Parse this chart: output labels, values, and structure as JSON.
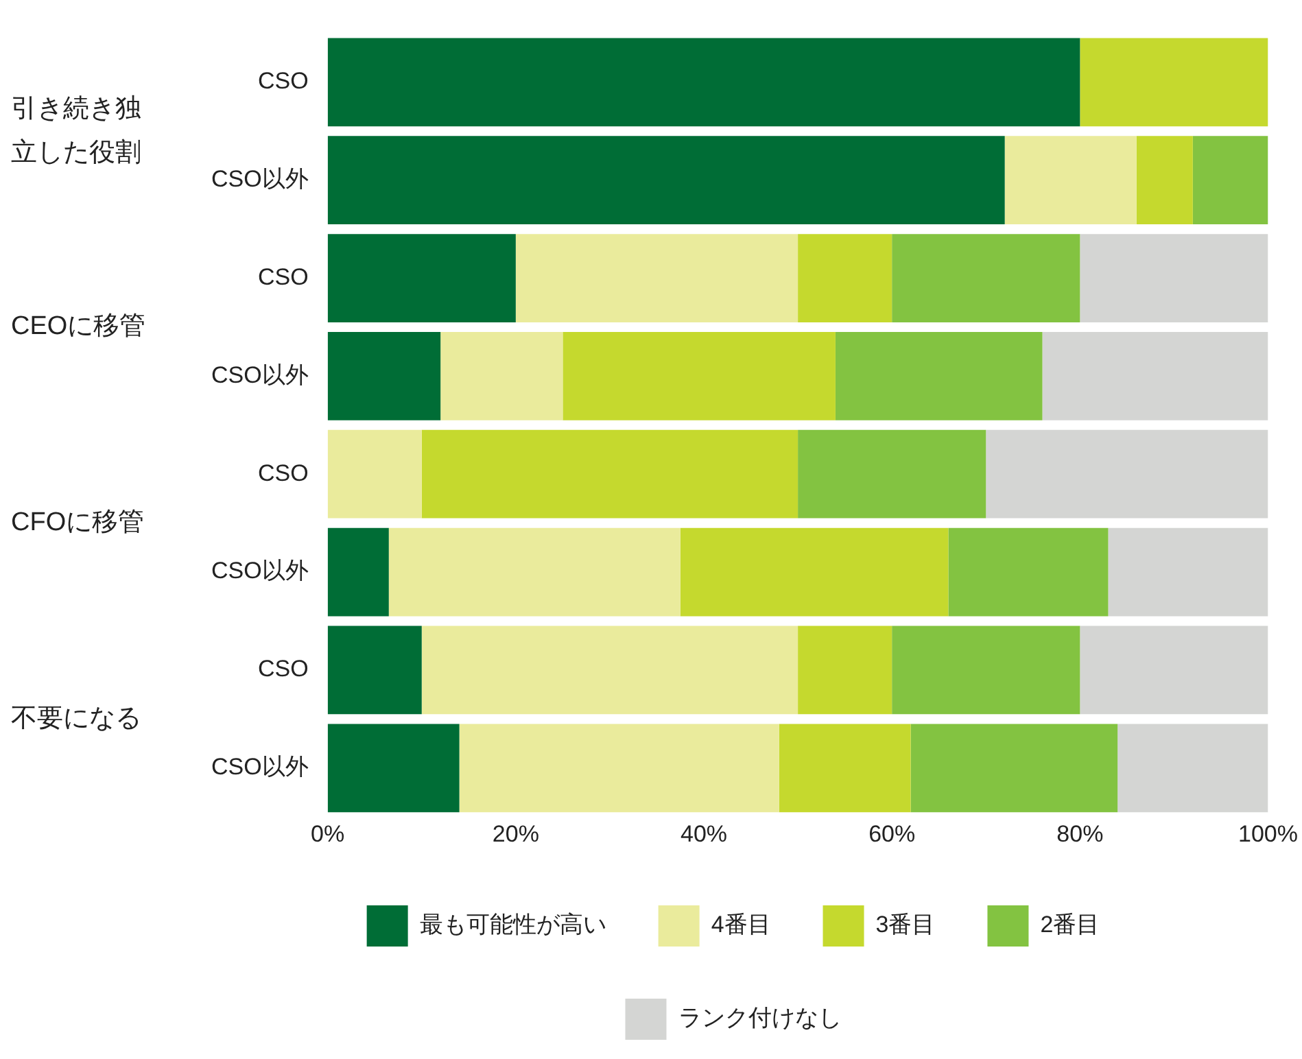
{
  "chart_data": {
    "type": "bar",
    "orientation": "horizontal",
    "stacked": true,
    "categories": [
      "CSO",
      "CSO以外",
      "CSO",
      "CSO以外",
      "CSO",
      "CSO以外",
      "CSO",
      "CSO以外"
    ],
    "annotations": [
      "引き続き独立した役割",
      "CEOに移管",
      "CFOに移管",
      "不要になる"
    ],
    "series": [
      {
        "name": "最も可能性が高い",
        "color": "#006d36",
        "values": [
          80,
          72,
          20,
          12,
          0,
          6.5,
          10,
          14
        ]
      },
      {
        "name": "4番目",
        "color": "#eaeb9c",
        "values": [
          0,
          14,
          30,
          13,
          10,
          31,
          40,
          34
        ]
      },
      {
        "name": "3番目",
        "color": "#c5d92e",
        "values": [
          20,
          6,
          10,
          29,
          40,
          28.5,
          10,
          14
        ]
      },
      {
        "name": "2番目",
        "color": "#83c341",
        "values": [
          0,
          8,
          20,
          22,
          20,
          17,
          20,
          22
        ]
      },
      {
        "name": "ランク付けなし",
        "color": "#d4d5d3",
        "values": [
          0,
          0,
          20,
          24,
          30,
          17,
          20,
          16
        ]
      }
    ],
    "xlim": [
      0,
      100
    ],
    "xticks": [
      {
        "value": 0,
        "label": "0%"
      },
      {
        "value": 20,
        "label": "20%"
      },
      {
        "value": 40,
        "label": "40%"
      },
      {
        "value": 60,
        "label": "60%"
      },
      {
        "value": 80,
        "label": "80%"
      },
      {
        "value": 100,
        "label": "100%"
      }
    ],
    "grid": false,
    "legend": "bottom"
  }
}
